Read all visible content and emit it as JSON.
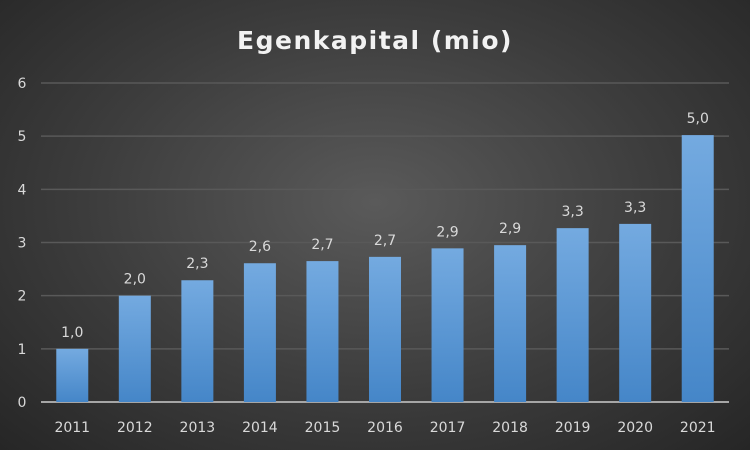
{
  "chart_data": {
    "type": "bar",
    "title": "Egenkapital (mio)",
    "xlabel": "",
    "ylabel": "",
    "categories": [
      "2011",
      "2012",
      "2013",
      "2014",
      "2015",
      "2016",
      "2017",
      "2018",
      "2019",
      "2020",
      "2021"
    ],
    "values": [
      1.0,
      2.0,
      2.29,
      2.61,
      2.65,
      2.73,
      2.89,
      2.95,
      3.27,
      3.35,
      5.02
    ],
    "data_labels": [
      "1,0",
      "2,0",
      "2,3",
      "2,6",
      "2,7",
      "2,7",
      "2,9",
      "2,9",
      "3,3",
      "3,3",
      "5,0"
    ],
    "ylim": [
      0,
      6
    ],
    "yticks": [
      "0",
      "1",
      "2",
      "3",
      "4",
      "5",
      "6"
    ],
    "grid": true,
    "legend": "none",
    "colors": {
      "bar_top": "#74aae0",
      "bar_bottom": "#4586c8",
      "grid": "#595959",
      "axis": "#a6a6a6"
    }
  }
}
